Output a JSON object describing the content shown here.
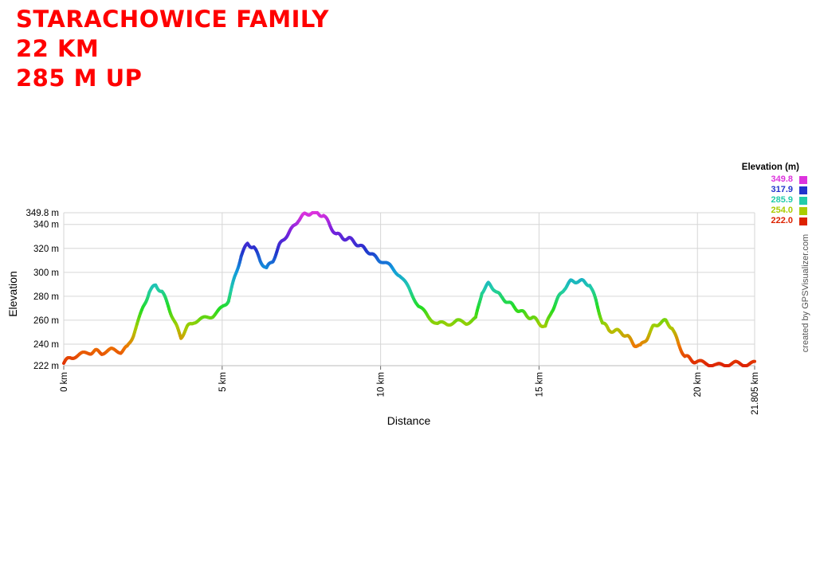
{
  "header": {
    "lines": [
      "STARACHOWICE FAMILY",
      "22 KM",
      "285 M UP"
    ],
    "color": "#ff0000"
  },
  "credit": "created by GPSVisualizer.com",
  "legend": {
    "title": "Elevation (m)",
    "items": [
      {
        "label": "349.8",
        "color": "#dd33dd"
      },
      {
        "label": "317.9",
        "color": "#2233cc"
      },
      {
        "label": "285.9",
        "color": "#22ccaa"
      },
      {
        "label": "254.0",
        "color": "#aacc00"
      },
      {
        "label": "222.0",
        "color": "#dd2200"
      }
    ]
  },
  "chart_data": {
    "type": "line",
    "xlabel": "Distance",
    "ylabel": "Elevation",
    "xlim": [
      0,
      21.805
    ],
    "ylim": [
      222,
      349.8
    ],
    "x_ticks": [
      {
        "value": 0,
        "label": "0 km"
      },
      {
        "value": 5,
        "label": "5 km"
      },
      {
        "value": 10,
        "label": "10 km"
      },
      {
        "value": 15,
        "label": "15 km"
      },
      {
        "value": 20,
        "label": "20 km"
      },
      {
        "value": 21.805,
        "label": "21.805 km"
      }
    ],
    "y_ticks": [
      {
        "value": 222,
        "label": "222 m"
      },
      {
        "value": 240,
        "label": "240 m"
      },
      {
        "value": 260,
        "label": "260 m"
      },
      {
        "value": 280,
        "label": "280 m"
      },
      {
        "value": 300,
        "label": "300 m"
      },
      {
        "value": 320,
        "label": "320 m"
      },
      {
        "value": 340,
        "label": "340 m"
      },
      {
        "value": 349.8,
        "label": "349.8 m"
      }
    ],
    "grid": true,
    "color_scale": [
      {
        "value": 222,
        "color": "#dd2200"
      },
      {
        "value": 238,
        "color": "#ee7700"
      },
      {
        "value": 254,
        "color": "#aacc00"
      },
      {
        "value": 270,
        "color": "#22dd22"
      },
      {
        "value": 285.9,
        "color": "#22ccaa"
      },
      {
        "value": 302,
        "color": "#1199dd"
      },
      {
        "value": 317.9,
        "color": "#2233cc"
      },
      {
        "value": 334,
        "color": "#7722dd"
      },
      {
        "value": 349.8,
        "color": "#dd33dd"
      }
    ],
    "series": [
      {
        "x": [
          0,
          0.2,
          0.5,
          0.8,
          1.0,
          1.2,
          1.5,
          1.8,
          2.0,
          2.2,
          2.5,
          2.7,
          2.9,
          3.1,
          3.3,
          3.5,
          3.7,
          3.9,
          4.1,
          4.4,
          4.7,
          5.0,
          5.2,
          5.4,
          5.6,
          5.8,
          6.0,
          6.2,
          6.4,
          6.6,
          6.8,
          7.0,
          7.2,
          7.4,
          7.6,
          7.8,
          8.0,
          8.2,
          8.4,
          8.6,
          8.8,
          9.0,
          9.2,
          9.4,
          9.6,
          9.8,
          10.0,
          10.3,
          10.6,
          10.9,
          11.2,
          11.5,
          11.8,
          12.1,
          12.4,
          12.7,
          13.0,
          13.2,
          13.4,
          13.6,
          13.8,
          14.0,
          14.2,
          14.4,
          14.6,
          14.8,
          15.0,
          15.2,
          15.4,
          15.6,
          15.8,
          16.0,
          16.2,
          16.4,
          16.6,
          16.8,
          17.0,
          17.2,
          17.4,
          17.6,
          17.8,
          18.0,
          18.2,
          18.4,
          18.6,
          18.8,
          19.0,
          19.2,
          19.4,
          19.6,
          19.8,
          20.0,
          20.3,
          20.6,
          20.9,
          21.2,
          21.5,
          21.805
        ],
        "y": [
          224,
          229,
          231,
          233,
          234,
          233,
          235,
          234,
          237,
          248,
          270,
          284,
          289,
          284,
          272,
          258,
          246,
          254,
          259,
          261,
          264,
          270,
          277,
          296,
          314,
          324,
          321,
          310,
          303,
          310,
          322,
          330,
          336,
          344,
          348,
          350,
          349,
          348,
          339,
          332,
          329,
          328,
          325,
          321,
          318,
          313,
          310,
          305,
          298,
          286,
          272,
          263,
          257,
          257,
          259,
          258,
          261,
          284,
          290,
          286,
          279,
          276,
          271,
          268,
          264,
          262,
          258,
          254,
          268,
          278,
          287,
          292,
          293,
          292,
          290,
          276,
          258,
          252,
          251,
          250,
          246,
          240,
          238,
          245,
          254,
          258,
          259,
          254,
          240,
          230,
          227,
          225,
          224,
          222,
          223,
          224,
          223,
          224
        ]
      }
    ]
  }
}
